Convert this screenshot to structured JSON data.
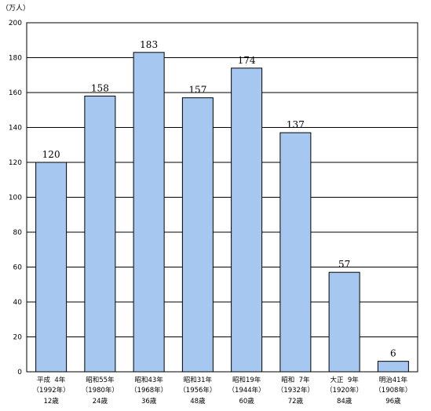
{
  "chart_data": {
    "type": "bar",
    "unit": "（万人）",
    "ylim": [
      0,
      200
    ],
    "yticks": [
      0,
      20,
      40,
      60,
      80,
      100,
      120,
      140,
      160,
      180,
      200
    ],
    "grid": true,
    "categories": [
      {
        "era": "平成  4年",
        "year": "（1992年）",
        "age": "12歳"
      },
      {
        "era": "昭和55年",
        "year": "（1980年）",
        "age": "24歳"
      },
      {
        "era": "昭和43年",
        "year": "（1968年）",
        "age": "36歳"
      },
      {
        "era": "昭和31年",
        "year": "（1956年）",
        "age": "48歳"
      },
      {
        "era": "昭和19年",
        "year": "（1944年）",
        "age": "60歳"
      },
      {
        "era": "昭和  7年",
        "year": "（1932年）",
        "age": "72歳"
      },
      {
        "era": "大正  9年",
        "year": "（1920年）",
        "age": "84歳"
      },
      {
        "era": "明治41年",
        "year": "（1908年）",
        "age": "96歳"
      }
    ],
    "values": [
      120,
      158,
      183,
      157,
      174,
      137,
      57,
      6
    ],
    "colors": {
      "bar_fill": "#a6c8f0",
      "bar_stroke": "#000000",
      "grid": "#000000"
    }
  }
}
